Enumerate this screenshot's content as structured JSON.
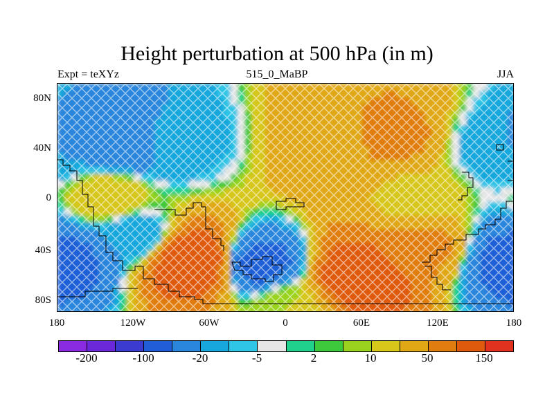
{
  "title": "Height perturbation at 500 hPa (in m)",
  "subtitle_left": "Expt = teXYz",
  "subtitle_center": "515_0_MaBP",
  "subtitle_right": "JJA",
  "chart_data": {
    "type": "heatmap",
    "projection": "lat-lon cylindrical",
    "x_axis": {
      "range": [
        -180,
        180
      ],
      "ticks": [
        {
          "value": -180,
          "label": "180"
        },
        {
          "value": -120,
          "label": "120W"
        },
        {
          "value": -60,
          "label": "60W"
        },
        {
          "value": 0,
          "label": "0"
        },
        {
          "value": 60,
          "label": "60E"
        },
        {
          "value": 120,
          "label": "120E"
        },
        {
          "value": 180,
          "label": "180"
        }
      ]
    },
    "y_axis": {
      "range": [
        -90,
        90
      ],
      "ticks": [
        {
          "value": 80,
          "label": "80N"
        },
        {
          "value": 40,
          "label": "40N"
        },
        {
          "value": 0,
          "label": "0"
        },
        {
          "value": -40,
          "label": "40S"
        },
        {
          "value": -80,
          "label": "80S"
        }
      ]
    },
    "colorbar": {
      "colors": [
        "#8a2be2",
        "#6a28d9",
        "#3b3ccf",
        "#1f5ed6",
        "#2a86dc",
        "#18a7dc",
        "#2ec5e6",
        "#e6e6e6",
        "#1fd18a",
        "#3cc93c",
        "#9ad31f",
        "#d7c71a",
        "#e0a815",
        "#e07d10",
        "#e05a0e",
        "#e0321e"
      ],
      "labels": [
        {
          "boundary": 1,
          "label": "-200"
        },
        {
          "boundary": 3,
          "label": "-100"
        },
        {
          "boundary": 5,
          "label": "-20"
        },
        {
          "boundary": 7,
          "label": "-5"
        },
        {
          "boundary": 9,
          "label": "2"
        },
        {
          "boundary": 11,
          "label": "10"
        },
        {
          "boundary": 13,
          "label": "50"
        },
        {
          "boundary": 15,
          "label": "150"
        }
      ]
    },
    "field_centers_m": [
      {
        "lon": -130,
        "lat": 43,
        "value": -45
      },
      {
        "lon": -90,
        "lat": 45,
        "value": -15
      },
      {
        "lon": 80,
        "lat": 48,
        "value": 60
      },
      {
        "lon": 40,
        "lat": 45,
        "value": 35
      },
      {
        "lon": 170,
        "lat": 40,
        "value": -20
      },
      {
        "lon": -75,
        "lat": -50,
        "value": 150
      },
      {
        "lon": -20,
        "lat": -52,
        "value": -60
      },
      {
        "lon": 60,
        "lat": -62,
        "value": 150
      },
      {
        "lon": 110,
        "lat": -40,
        "value": 55
      },
      {
        "lon": 175,
        "lat": -50,
        "value": -60
      },
      {
        "lon": -175,
        "lat": -50,
        "value": -60
      },
      {
        "lon": -120,
        "lat": -30,
        "value": -20
      },
      {
        "lon": -140,
        "lat": 0,
        "value": 20
      },
      {
        "lon": 100,
        "lat": 0,
        "value": 15
      },
      {
        "lon": 0,
        "lat": -85,
        "value": 10
      }
    ]
  }
}
